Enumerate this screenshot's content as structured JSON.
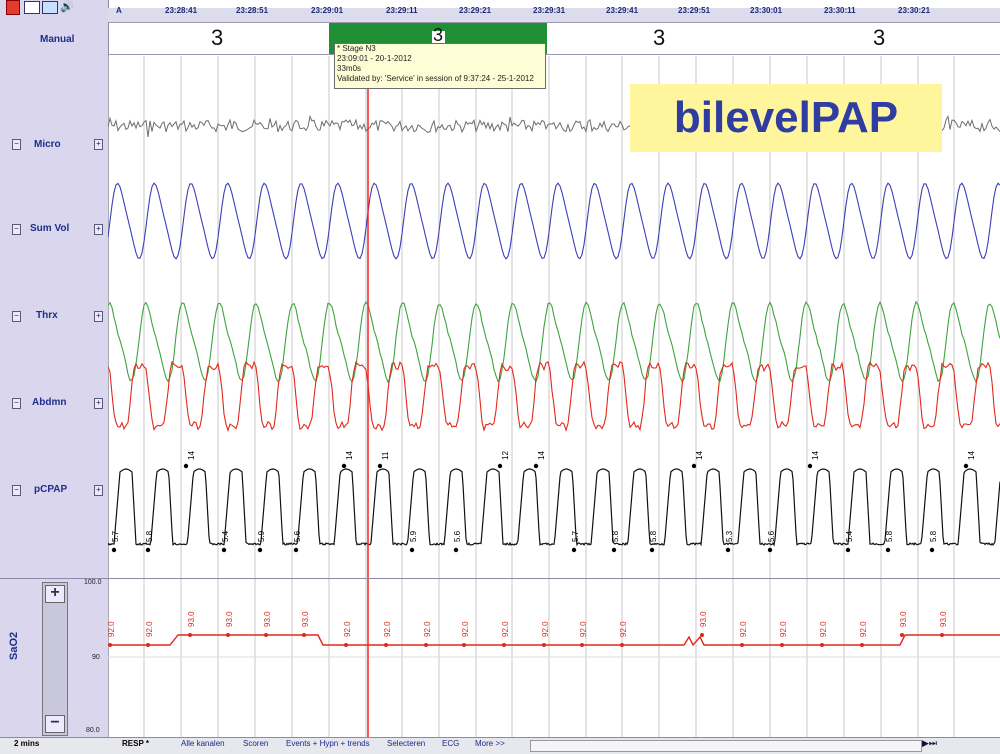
{
  "toolbar": {
    "icons": [
      "red-cursor-icon",
      "chart-icon",
      "folder-icon",
      "speaker-icon"
    ]
  },
  "timeline": {
    "marker": "A",
    "times": [
      "23:28:41",
      "23:28:51",
      "23:29:01",
      "23:29:11",
      "23:29:21",
      "23:29:31",
      "23:29:41",
      "23:29:51",
      "23:30:01",
      "23:30:11",
      "23:30:21"
    ]
  },
  "hypnogram": {
    "label": "Manual",
    "stages": [
      "3",
      "3",
      "3",
      "3"
    ]
  },
  "tooltip": {
    "line1": "* Stage N3",
    "line2": "23:09:01 - 20-1-2012",
    "line3": "33m0s",
    "line4": "Validated by: 'Service' in session of 9:37:24 - 25-1-2012"
  },
  "overlay_label": "bilevelPAP",
  "channels": [
    "Micro",
    "Sum Vol",
    "Thrx",
    "Abdmn",
    "pCPAP"
  ],
  "pcpap_values": [
    "5.7",
    "5.8",
    "5.4",
    "5.9",
    "5.6",
    "5.9",
    "5.6",
    "5.7",
    "5.8",
    "5.8",
    "5.3",
    "5.6",
    "5.4",
    "5.8",
    "5.8"
  ],
  "pcpap_peak_values": [
    "14",
    "14",
    "11",
    "12",
    "14",
    "14",
    "14",
    "14"
  ],
  "sao2": {
    "label": "SaO2",
    "scale_top": "100.0",
    "scale_mid": "90",
    "scale_bottom": "80.0",
    "values": [
      "92.0",
      "92.0",
      "93.0",
      "93.0",
      "93.0",
      "93.0",
      "92.0",
      "92.0",
      "92.0",
      "92.0",
      "92.0",
      "92.0",
      "92.0",
      "92.0",
      "93.0",
      "92.0",
      "92.0",
      "92.0",
      "92.0",
      "93.0",
      "93.0"
    ]
  },
  "bottom": {
    "zoom_label": "2 mins",
    "tabs": [
      "RESP *",
      "Alle kanalen",
      "Scoren",
      "Events + Hypn + trends",
      "Selecteren",
      "ECG",
      "More >>"
    ],
    "active_tab": "RESP *"
  },
  "colors": {
    "sumvol": "#3b3fb6",
    "thrx": "#3fa33f",
    "abdmn": "#e0291c",
    "pcpap": "#111111",
    "sao2": "#e0291c",
    "cursor": "#ff2020",
    "hyp_band": "#1f8f36"
  }
}
